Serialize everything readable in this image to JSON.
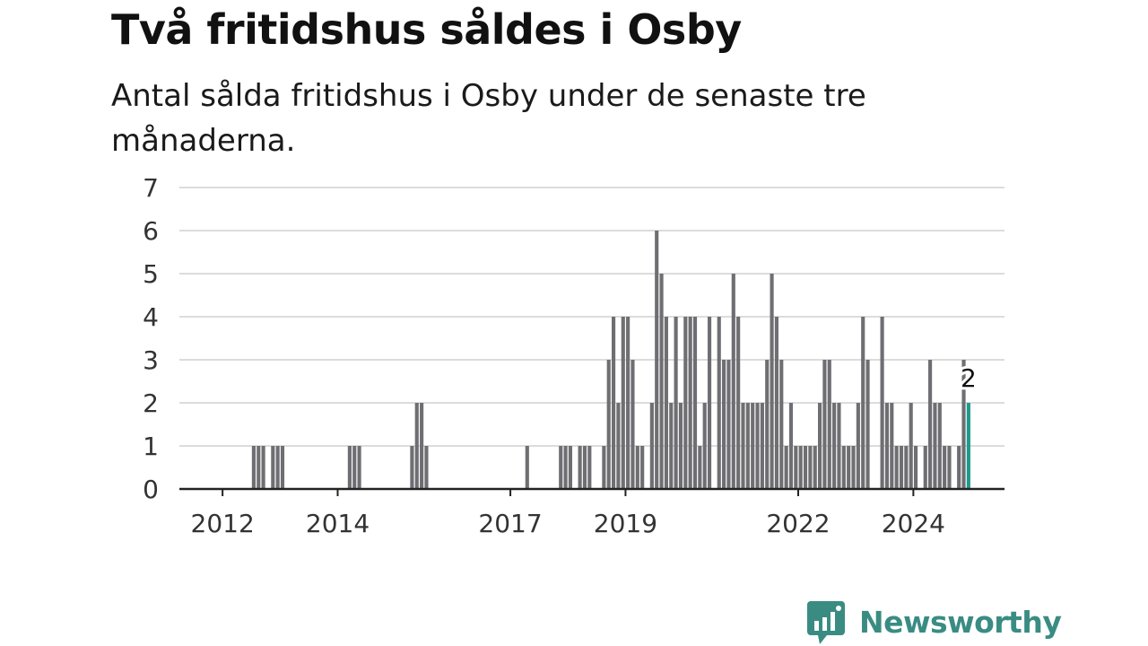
{
  "header": {
    "title": "Två fritidshus såldes i Osby",
    "subtitle": "Antal sålda fritidshus i Osby under de senaste tre månaderna."
  },
  "branding": {
    "name": "Newsworthy",
    "color": "#3a8c83"
  },
  "chart_data": {
    "type": "bar",
    "x_axis": {
      "ticks": [
        "2012",
        "2014",
        "2017",
        "2019",
        "2022",
        "2024"
      ],
      "range": [
        "2011-04",
        "2025-08"
      ]
    },
    "y_axis": {
      "ticks": [
        0,
        1,
        2,
        3,
        4,
        5,
        6,
        7
      ],
      "ylim": [
        0,
        7
      ]
    },
    "grid": true,
    "colors": {
      "bar": "#6f6e73",
      "highlight": "#1f9a8c"
    },
    "highlight_label": "2",
    "x": [
      "2012-07",
      "2012-08",
      "2012-09",
      "2012-11",
      "2012-12",
      "2013-01",
      "2014-03",
      "2014-04",
      "2014-05",
      "2015-04",
      "2015-05",
      "2015-06",
      "2015-07",
      "2017-04",
      "2017-11",
      "2017-12",
      "2018-01",
      "2018-03",
      "2018-04",
      "2018-05",
      "2018-08",
      "2018-09",
      "2018-10",
      "2018-11",
      "2018-12",
      "2019-01",
      "2019-02",
      "2019-03",
      "2019-04",
      "2019-06",
      "2019-07",
      "2019-08",
      "2019-09",
      "2019-10",
      "2019-11",
      "2019-12",
      "2020-01",
      "2020-02",
      "2020-03",
      "2020-04",
      "2020-05",
      "2020-06",
      "2020-08",
      "2020-09",
      "2020-10",
      "2020-11",
      "2020-12",
      "2021-01",
      "2021-02",
      "2021-03",
      "2021-04",
      "2021-05",
      "2021-06",
      "2021-07",
      "2021-08",
      "2021-09",
      "2021-10",
      "2021-11",
      "2021-12",
      "2022-01",
      "2022-02",
      "2022-03",
      "2022-04",
      "2022-05",
      "2022-06",
      "2022-07",
      "2022-08",
      "2022-09",
      "2022-10",
      "2022-11",
      "2022-12",
      "2023-01",
      "2023-02",
      "2023-03",
      "2023-06",
      "2023-07",
      "2023-08",
      "2023-09",
      "2023-10",
      "2023-11",
      "2023-12",
      "2024-01",
      "2024-03",
      "2024-04",
      "2024-05",
      "2024-06",
      "2024-07",
      "2024-08",
      "2024-10",
      "2024-11",
      "2024-12"
    ],
    "values": [
      1,
      1,
      1,
      1,
      1,
      1,
      1,
      1,
      1,
      1,
      2,
      2,
      1,
      1,
      1,
      1,
      1,
      1,
      1,
      1,
      1,
      3,
      4,
      2,
      4,
      4,
      3,
      1,
      1,
      2,
      6,
      5,
      4,
      2,
      4,
      2,
      4,
      4,
      4,
      1,
      2,
      4,
      4,
      3,
      3,
      5,
      4,
      2,
      2,
      2,
      2,
      2,
      3,
      5,
      4,
      3,
      1,
      2,
      1,
      1,
      1,
      1,
      1,
      2,
      3,
      3,
      2,
      2,
      1,
      1,
      1,
      2,
      4,
      3,
      4,
      2,
      2,
      1,
      1,
      1,
      2,
      1,
      1,
      3,
      2,
      2,
      1,
      1,
      1,
      3,
      2
    ]
  }
}
